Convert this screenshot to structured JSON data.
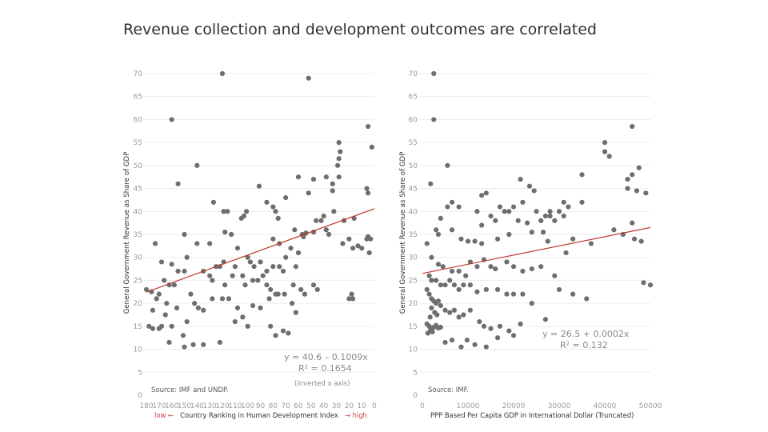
{
  "slide": {
    "title": "Revenue collection and development outcomes are correlated"
  },
  "chart_data": [
    {
      "type": "scatter",
      "ylabel": "General Government Revenue as Share of GDP",
      "xlabel": "Country Ranking in Human Development Index",
      "xlabel_low": "low ←",
      "xlabel_high": "→ high",
      "ylim": [
        0,
        70
      ],
      "xlim": [
        180,
        0
      ],
      "x_inverted": true,
      "yticks": [
        "0",
        "5",
        "10",
        "15",
        "20",
        "25",
        "30",
        "35",
        "40",
        "45",
        "50",
        "55",
        "60",
        "65",
        "70"
      ],
      "xticks": [
        "180",
        "170",
        "160",
        "150",
        "140",
        "130",
        "120",
        "110",
        "100",
        "90",
        "80",
        "70",
        "60",
        "50",
        "40",
        "30",
        "20",
        "10",
        "0"
      ],
      "trend": {
        "intercept": 40.6,
        "slope": -0.1009,
        "color": "#c0392b"
      },
      "equation": "y = 40.6 – 0.1009x",
      "r2": "R² = 0.1654",
      "note": "(inverted x axis)",
      "source": "Source: IMF and UNDP.",
      "points": [
        [
          120,
          70
        ],
        [
          52,
          69
        ],
        [
          160,
          60
        ],
        [
          5,
          58.5
        ],
        [
          2,
          54
        ],
        [
          28,
          55
        ],
        [
          27,
          53
        ],
        [
          28,
          51.5
        ],
        [
          29,
          50
        ],
        [
          140,
          50
        ],
        [
          155,
          46
        ],
        [
          38,
          47.5
        ],
        [
          48,
          47
        ],
        [
          60,
          47.5
        ],
        [
          28,
          47.5
        ],
        [
          33,
          46
        ],
        [
          33,
          44.5
        ],
        [
          52,
          44
        ],
        [
          91,
          45.5
        ],
        [
          6,
          45
        ],
        [
          5,
          44
        ],
        [
          70,
          43
        ],
        [
          127,
          42
        ],
        [
          85,
          42
        ],
        [
          80,
          41
        ],
        [
          32,
          40
        ],
        [
          119,
          40
        ],
        [
          116,
          40
        ],
        [
          76,
          38.5
        ],
        [
          78,
          40
        ],
        [
          101,
          40
        ],
        [
          103,
          39
        ],
        [
          40,
          39
        ],
        [
          42,
          38
        ],
        [
          46,
          38
        ],
        [
          24,
          38
        ],
        [
          105,
          38.5
        ],
        [
          16,
          38.5
        ],
        [
          38,
          36
        ],
        [
          36,
          35
        ],
        [
          48,
          35.5
        ],
        [
          54,
          35.3
        ],
        [
          57,
          35
        ],
        [
          63,
          36
        ],
        [
          56,
          34.5
        ],
        [
          20,
          34
        ],
        [
          25,
          33
        ],
        [
          17,
          32
        ],
        [
          10,
          32
        ],
        [
          6,
          34
        ],
        [
          3,
          34
        ],
        [
          4,
          31
        ],
        [
          13,
          32.5
        ],
        [
          5,
          34.5
        ],
        [
          173,
          33
        ],
        [
          150,
          35
        ],
        [
          140,
          33
        ],
        [
          130,
          33
        ],
        [
          118,
          35.5
        ],
        [
          113,
          35
        ],
        [
          108,
          32
        ],
        [
          80,
          34
        ],
        [
          75,
          33
        ],
        [
          66,
          32
        ],
        [
          60,
          31
        ],
        [
          62,
          28
        ],
        [
          70,
          30
        ],
        [
          168,
          29
        ],
        [
          160,
          28.5
        ],
        [
          155,
          27
        ],
        [
          150,
          27
        ],
        [
          148,
          30
        ],
        [
          135,
          27
        ],
        [
          130,
          26
        ],
        [
          125,
          28
        ],
        [
          122,
          28
        ],
        [
          119,
          29
        ],
        [
          110,
          28
        ],
        [
          100,
          30
        ],
        [
          98,
          29
        ],
        [
          95,
          28
        ],
        [
          90,
          29
        ],
        [
          85,
          27
        ],
        [
          80,
          28
        ],
        [
          75,
          28
        ],
        [
          72,
          27
        ],
        [
          128,
          25
        ],
        [
          118,
          24
        ],
        [
          112,
          26
        ],
        [
          104,
          26
        ],
        [
          102,
          24
        ],
        [
          96,
          25
        ],
        [
          92,
          25
        ],
        [
          88,
          26
        ],
        [
          85,
          24
        ],
        [
          82,
          23
        ],
        [
          78,
          22
        ],
        [
          64,
          24
        ],
        [
          58,
          23
        ],
        [
          48,
          24
        ],
        [
          45,
          23
        ],
        [
          166,
          25
        ],
        [
          162,
          24
        ],
        [
          158,
          24
        ],
        [
          170,
          22
        ],
        [
          180,
          23
        ],
        [
          176,
          22.5
        ],
        [
          172,
          21
        ],
        [
          164,
          20
        ],
        [
          156,
          19
        ],
        [
          145,
          22
        ],
        [
          142,
          20
        ],
        [
          139,
          19
        ],
        [
          135,
          18.5
        ],
        [
          128,
          21
        ],
        [
          120,
          21
        ],
        [
          115,
          21
        ],
        [
          108,
          19
        ],
        [
          104,
          17
        ],
        [
          100,
          15
        ],
        [
          90,
          19
        ],
        [
          83,
          21
        ],
        [
          76,
          22
        ],
        [
          71,
          22
        ],
        [
          65,
          20
        ],
        [
          62,
          18
        ],
        [
          55,
          22
        ],
        [
          20,
          21
        ],
        [
          18,
          22
        ],
        [
          17,
          21
        ],
        [
          178,
          15
        ],
        [
          175,
          14.5
        ],
        [
          170,
          14.5
        ],
        [
          168,
          15
        ],
        [
          160,
          15
        ],
        [
          151,
          13
        ],
        [
          148,
          16
        ],
        [
          143,
          11
        ],
        [
          135,
          11
        ],
        [
          122,
          11.5
        ],
        [
          110,
          16
        ],
        [
          96,
          19.5
        ],
        [
          82,
          15
        ],
        [
          78,
          13
        ],
        [
          72,
          14
        ],
        [
          68,
          13.5
        ],
        [
          150,
          10.5
        ],
        [
          162,
          11.5
        ],
        [
          175,
          18.5
        ],
        [
          165,
          17.5
        ]
      ]
    },
    {
      "type": "scatter",
      "ylabel": "General Government Revenue as Share of GDP",
      "xlabel": "PPP Based Per Capita GDP in International Dollar (Truncated)",
      "ylim": [
        0,
        70
      ],
      "xlim": [
        0,
        50000
      ],
      "yticks": [
        "0",
        "5",
        "10",
        "15",
        "20",
        "25",
        "30",
        "35",
        "40",
        "45",
        "50",
        "55",
        "60",
        "65",
        "70"
      ],
      "xticks": [
        "0",
        "10000",
        "20000",
        "30000",
        "40000",
        "50000"
      ],
      "trend": {
        "intercept": 26.5,
        "slope": 0.0002,
        "color": "#c0392b"
      },
      "equation": "y = 26.5 + 0.0002x",
      "r2": "R² = 0.132",
      "source": "Source: IMF.",
      "points": [
        [
          2500,
          70
        ],
        [
          2500,
          60
        ],
        [
          46000,
          58.5
        ],
        [
          40000,
          55
        ],
        [
          40000,
          53
        ],
        [
          41000,
          52
        ],
        [
          5500,
          50
        ],
        [
          47500,
          49.5
        ],
        [
          46000,
          48
        ],
        [
          35000,
          48
        ],
        [
          45000,
          47
        ],
        [
          1800,
          46
        ],
        [
          21500,
          47
        ],
        [
          23500,
          45.5
        ],
        [
          24500,
          44.5
        ],
        [
          14000,
          44
        ],
        [
          13000,
          43.5
        ],
        [
          45000,
          45
        ],
        [
          47000,
          44.5
        ],
        [
          49000,
          44
        ],
        [
          22000,
          42
        ],
        [
          6500,
          42
        ],
        [
          5500,
          41
        ],
        [
          31000,
          42
        ],
        [
          32000,
          41
        ],
        [
          35000,
          42
        ],
        [
          8000,
          41
        ],
        [
          18000,
          40
        ],
        [
          17000,
          41
        ],
        [
          19000,
          40
        ],
        [
          20000,
          41
        ],
        [
          25000,
          40
        ],
        [
          28000,
          40
        ],
        [
          30000,
          40
        ],
        [
          29000,
          38
        ],
        [
          27000,
          39
        ],
        [
          12000,
          40
        ],
        [
          15000,
          39
        ],
        [
          16000,
          38
        ],
        [
          13000,
          37
        ],
        [
          21000,
          38
        ],
        [
          23000,
          37.5
        ],
        [
          26000,
          38
        ],
        [
          28000,
          39
        ],
        [
          31000,
          39
        ],
        [
          46000,
          37.5
        ],
        [
          4000,
          38.5
        ],
        [
          3000,
          36
        ],
        [
          3500,
          35
        ],
        [
          6500,
          36
        ],
        [
          8500,
          34
        ],
        [
          10000,
          33.5
        ],
        [
          11500,
          33.5
        ],
        [
          13000,
          33
        ],
        [
          16500,
          34
        ],
        [
          19000,
          35
        ],
        [
          24000,
          35.5
        ],
        [
          26500,
          35.5
        ],
        [
          33000,
          34
        ],
        [
          27500,
          33.5
        ],
        [
          31500,
          31
        ],
        [
          37000,
          33
        ],
        [
          42000,
          36
        ],
        [
          44000,
          35
        ],
        [
          46500,
          34
        ],
        [
          48000,
          33.5
        ],
        [
          1000,
          33
        ],
        [
          2000,
          30
        ],
        [
          3500,
          28.5
        ],
        [
          4500,
          28
        ],
        [
          6500,
          27
        ],
        [
          8000,
          27
        ],
        [
          9500,
          26
        ],
        [
          10500,
          29
        ],
        [
          12000,
          28
        ],
        [
          13500,
          29.5
        ],
        [
          15000,
          28
        ],
        [
          16000,
          27.5
        ],
        [
          18500,
          29
        ],
        [
          20000,
          28
        ],
        [
          22000,
          27
        ],
        [
          24000,
          27.5
        ],
        [
          26000,
          28
        ],
        [
          29000,
          26
        ],
        [
          1500,
          26
        ],
        [
          2000,
          25
        ],
        [
          3000,
          25
        ],
        [
          4000,
          24
        ],
        [
          5000,
          24
        ],
        [
          6000,
          25
        ],
        [
          7000,
          24
        ],
        [
          8000,
          23
        ],
        [
          9000,
          24
        ],
        [
          10500,
          24
        ],
        [
          12000,
          22.5
        ],
        [
          14000,
          23
        ],
        [
          16500,
          23
        ],
        [
          18500,
          22
        ],
        [
          20000,
          22
        ],
        [
          22000,
          22
        ],
        [
          24000,
          20
        ],
        [
          30000,
          23
        ],
        [
          33000,
          22
        ],
        [
          36000,
          21
        ],
        [
          48500,
          24.5
        ],
        [
          50000,
          24
        ],
        [
          1000,
          23
        ],
        [
          1500,
          22
        ],
        [
          2000,
          21
        ],
        [
          2500,
          20.5
        ],
        [
          3000,
          20
        ],
        [
          3500,
          20.5
        ],
        [
          4000,
          19.5
        ],
        [
          5000,
          18.5
        ],
        [
          6000,
          18
        ],
        [
          7000,
          18.5
        ],
        [
          8000,
          17
        ],
        [
          9000,
          17.5
        ],
        [
          10500,
          18.5
        ],
        [
          12500,
          16
        ],
        [
          13500,
          15
        ],
        [
          15000,
          14.5
        ],
        [
          17000,
          15
        ],
        [
          19000,
          14
        ],
        [
          20000,
          13
        ],
        [
          21500,
          15.5
        ],
        [
          27000,
          16.5
        ],
        [
          1000,
          15.5
        ],
        [
          1500,
          15
        ],
        [
          2000,
          14.5
        ],
        [
          2500,
          14.8
        ],
        [
          3000,
          15.2
        ],
        [
          3500,
          14.6
        ],
        [
          4000,
          14.8
        ],
        [
          1800,
          14.2
        ],
        [
          2200,
          13.8
        ],
        [
          1200,
          13.5
        ],
        [
          5000,
          11.5
        ],
        [
          6500,
          12
        ],
        [
          8500,
          10.5
        ],
        [
          9800,
          12
        ],
        [
          11500,
          11
        ],
        [
          14000,
          10.5
        ],
        [
          16500,
          12.5
        ],
        [
          2000,
          19
        ],
        [
          2700,
          18
        ],
        [
          1700,
          17
        ],
        [
          3200,
          17.5
        ]
      ]
    }
  ]
}
